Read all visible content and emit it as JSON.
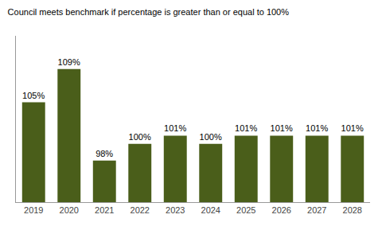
{
  "chart_data": {
    "type": "bar",
    "title": "Council meets benchmark if percentage is greater than or equal to 100%",
    "categories": [
      "2019",
      "2020",
      "2021",
      "2022",
      "2023",
      "2024",
      "2025",
      "2026",
      "2027",
      "2028"
    ],
    "values": [
      105,
      109,
      98,
      100,
      101,
      100,
      101,
      101,
      101,
      101
    ],
    "value_labels": [
      "105%",
      "109%",
      "98%",
      "100%",
      "101%",
      "100%",
      "101%",
      "101%",
      "101%",
      "101%"
    ],
    "data_labels": true,
    "color": "#4a5e1a",
    "ylim": [
      93,
      113
    ],
    "grid": false,
    "tick_labels": "x"
  }
}
